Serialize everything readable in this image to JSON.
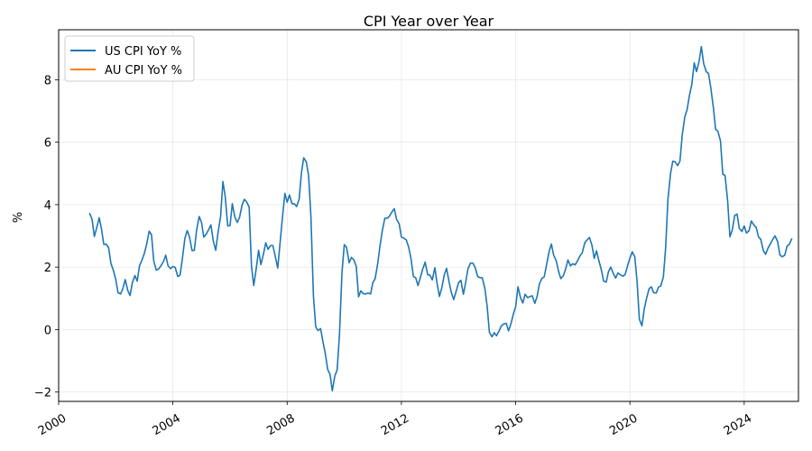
{
  "chart_data": {
    "type": "line",
    "title": "CPI Year over Year",
    "xlabel": "",
    "ylabel": "%",
    "xlim": [
      2000.0,
      2025.9
    ],
    "ylim": [
      -2.3,
      9.6
    ],
    "x_ticks": [
      2000,
      2004,
      2008,
      2012,
      2016,
      2020,
      2024
    ],
    "y_ticks": [
      -2,
      0,
      2,
      4,
      6,
      8
    ],
    "grid": true,
    "legend_position": "top-left",
    "series": [
      {
        "name": "US CPI YoY %",
        "color": "#1f77b4",
        "points": [
          [
            2001.08,
            3.73
          ],
          [
            2001.17,
            3.53
          ],
          [
            2001.25,
            2.98
          ],
          [
            2001.33,
            3.25
          ],
          [
            2001.42,
            3.58
          ],
          [
            2001.5,
            3.22
          ],
          [
            2001.58,
            2.73
          ],
          [
            2001.67,
            2.73
          ],
          [
            2001.75,
            2.62
          ],
          [
            2001.83,
            2.12
          ],
          [
            2001.92,
            1.88
          ],
          [
            2002.0,
            1.6
          ],
          [
            2002.08,
            1.18
          ],
          [
            2002.17,
            1.14
          ],
          [
            2002.25,
            1.32
          ],
          [
            2002.33,
            1.6
          ],
          [
            2002.42,
            1.25
          ],
          [
            2002.5,
            1.09
          ],
          [
            2002.58,
            1.5
          ],
          [
            2002.67,
            1.73
          ],
          [
            2002.75,
            1.55
          ],
          [
            2002.83,
            2.04
          ],
          [
            2002.92,
            2.23
          ],
          [
            2003.0,
            2.44
          ],
          [
            2003.08,
            2.73
          ],
          [
            2003.17,
            3.15
          ],
          [
            2003.25,
            3.04
          ],
          [
            2003.33,
            2.2
          ],
          [
            2003.42,
            1.9
          ],
          [
            2003.5,
            1.94
          ],
          [
            2003.58,
            2.04
          ],
          [
            2003.67,
            2.18
          ],
          [
            2003.75,
            2.38
          ],
          [
            2003.83,
            2.04
          ],
          [
            2003.92,
            1.95
          ],
          [
            2004.0,
            2.02
          ],
          [
            2004.08,
            1.99
          ],
          [
            2004.17,
            1.7
          ],
          [
            2004.25,
            1.74
          ],
          [
            2004.33,
            2.26
          ],
          [
            2004.42,
            2.92
          ],
          [
            2004.5,
            3.17
          ],
          [
            2004.58,
            2.97
          ],
          [
            2004.67,
            2.53
          ],
          [
            2004.75,
            2.54
          ],
          [
            2004.83,
            3.19
          ],
          [
            2004.92,
            3.62
          ],
          [
            2005.0,
            3.44
          ],
          [
            2005.08,
            2.96
          ],
          [
            2005.17,
            3.06
          ],
          [
            2005.25,
            3.2
          ],
          [
            2005.33,
            3.35
          ],
          [
            2005.42,
            2.81
          ],
          [
            2005.5,
            2.54
          ],
          [
            2005.58,
            3.1
          ],
          [
            2005.67,
            3.62
          ],
          [
            2005.75,
            4.74
          ],
          [
            2005.83,
            4.27
          ],
          [
            2005.92,
            3.32
          ],
          [
            2006.0,
            3.33
          ],
          [
            2006.08,
            4.03
          ],
          [
            2006.17,
            3.6
          ],
          [
            2006.25,
            3.43
          ],
          [
            2006.33,
            3.58
          ],
          [
            2006.42,
            3.98
          ],
          [
            2006.5,
            4.17
          ],
          [
            2006.58,
            4.09
          ],
          [
            2006.67,
            3.92
          ],
          [
            2006.75,
            2.04
          ],
          [
            2006.83,
            1.41
          ],
          [
            2006.92,
            1.97
          ],
          [
            2007.0,
            2.54
          ],
          [
            2007.08,
            2.08
          ],
          [
            2007.17,
            2.42
          ],
          [
            2007.25,
            2.78
          ],
          [
            2007.33,
            2.57
          ],
          [
            2007.42,
            2.69
          ],
          [
            2007.5,
            2.69
          ],
          [
            2007.58,
            2.36
          ],
          [
            2007.67,
            1.97
          ],
          [
            2007.75,
            2.76
          ],
          [
            2007.83,
            3.54
          ],
          [
            2007.92,
            4.36
          ],
          [
            2008.0,
            4.08
          ],
          [
            2008.08,
            4.31
          ],
          [
            2008.17,
            4.03
          ],
          [
            2008.25,
            4.03
          ],
          [
            2008.33,
            3.94
          ],
          [
            2008.42,
            4.18
          ],
          [
            2008.5,
            5.02
          ],
          [
            2008.58,
            5.5
          ],
          [
            2008.67,
            5.37
          ],
          [
            2008.75,
            4.94
          ],
          [
            2008.83,
            3.66
          ],
          [
            2008.92,
            1.07
          ],
          [
            2009.0,
            0.09
          ],
          [
            2009.08,
            -0.03
          ],
          [
            2009.17,
            0.03
          ],
          [
            2009.25,
            -0.38
          ],
          [
            2009.33,
            -0.74
          ],
          [
            2009.42,
            -1.28
          ],
          [
            2009.5,
            -1.43
          ],
          [
            2009.58,
            -1.96
          ],
          [
            2009.67,
            -1.48
          ],
          [
            2009.75,
            -1.29
          ],
          [
            2009.83,
            -0.18
          ],
          [
            2009.92,
            1.84
          ],
          [
            2010.0,
            2.72
          ],
          [
            2010.08,
            2.63
          ],
          [
            2010.17,
            2.14
          ],
          [
            2010.25,
            2.31
          ],
          [
            2010.33,
            2.24
          ],
          [
            2010.42,
            2.02
          ],
          [
            2010.5,
            1.05
          ],
          [
            2010.58,
            1.24
          ],
          [
            2010.67,
            1.15
          ],
          [
            2010.75,
            1.14
          ],
          [
            2010.83,
            1.17
          ],
          [
            2010.92,
            1.14
          ],
          [
            2011.0,
            1.5
          ],
          [
            2011.08,
            1.63
          ],
          [
            2011.17,
            2.11
          ],
          [
            2011.25,
            2.68
          ],
          [
            2011.33,
            3.16
          ],
          [
            2011.42,
            3.57
          ],
          [
            2011.5,
            3.56
          ],
          [
            2011.58,
            3.63
          ],
          [
            2011.67,
            3.77
          ],
          [
            2011.75,
            3.87
          ],
          [
            2011.83,
            3.53
          ],
          [
            2011.92,
            3.39
          ],
          [
            2012.0,
            2.96
          ],
          [
            2012.08,
            2.93
          ],
          [
            2012.17,
            2.87
          ],
          [
            2012.25,
            2.65
          ],
          [
            2012.33,
            2.3
          ],
          [
            2012.42,
            1.7
          ],
          [
            2012.5,
            1.66
          ],
          [
            2012.58,
            1.41
          ],
          [
            2012.67,
            1.69
          ],
          [
            2012.75,
            1.95
          ],
          [
            2012.83,
            2.16
          ],
          [
            2012.92,
            1.76
          ],
          [
            2013.0,
            1.74
          ],
          [
            2013.08,
            1.59
          ],
          [
            2013.17,
            1.98
          ],
          [
            2013.25,
            1.47
          ],
          [
            2013.33,
            1.06
          ],
          [
            2013.42,
            1.36
          ],
          [
            2013.5,
            1.75
          ],
          [
            2013.58,
            1.96
          ],
          [
            2013.67,
            1.52
          ],
          [
            2013.75,
            1.18
          ],
          [
            2013.83,
            0.96
          ],
          [
            2013.92,
            1.24
          ],
          [
            2014.0,
            1.5
          ],
          [
            2014.08,
            1.58
          ],
          [
            2014.17,
            1.13
          ],
          [
            2014.25,
            1.51
          ],
          [
            2014.33,
            1.95
          ],
          [
            2014.42,
            2.13
          ],
          [
            2014.5,
            2.13
          ],
          [
            2014.58,
            1.99
          ],
          [
            2014.67,
            1.7
          ],
          [
            2014.75,
            1.66
          ],
          [
            2014.83,
            1.66
          ],
          [
            2014.92,
            1.32
          ],
          [
            2015.0,
            0.76
          ],
          [
            2015.08,
            -0.09
          ],
          [
            2015.17,
            -0.23
          ],
          [
            2015.25,
            -0.1
          ],
          [
            2015.33,
            -0.2
          ],
          [
            2015.42,
            -0.04
          ],
          [
            2015.5,
            0.12
          ],
          [
            2015.58,
            0.18
          ],
          [
            2015.67,
            0.2
          ],
          [
            2015.75,
            -0.04
          ],
          [
            2015.83,
            0.17
          ],
          [
            2015.92,
            0.5
          ],
          [
            2016.0,
            0.73
          ],
          [
            2016.08,
            1.37
          ],
          [
            2016.17,
            1.02
          ],
          [
            2016.25,
            0.85
          ],
          [
            2016.33,
            1.13
          ],
          [
            2016.42,
            1.02
          ],
          [
            2016.5,
            1.06
          ],
          [
            2016.58,
            1.08
          ],
          [
            2016.67,
            0.84
          ],
          [
            2016.75,
            1.06
          ],
          [
            2016.83,
            1.46
          ],
          [
            2016.92,
            1.64
          ],
          [
            2017.0,
            1.69
          ],
          [
            2017.08,
            2.07
          ],
          [
            2017.17,
            2.5
          ],
          [
            2017.25,
            2.74
          ],
          [
            2017.33,
            2.38
          ],
          [
            2017.42,
            2.2
          ],
          [
            2017.5,
            1.87
          ],
          [
            2017.58,
            1.63
          ],
          [
            2017.67,
            1.73
          ],
          [
            2017.75,
            1.94
          ],
          [
            2017.83,
            2.23
          ],
          [
            2017.92,
            2.04
          ],
          [
            2018.0,
            2.11
          ],
          [
            2018.08,
            2.07
          ],
          [
            2018.17,
            2.21
          ],
          [
            2018.25,
            2.36
          ],
          [
            2018.33,
            2.46
          ],
          [
            2018.42,
            2.78
          ],
          [
            2018.5,
            2.87
          ],
          [
            2018.58,
            2.95
          ],
          [
            2018.67,
            2.7
          ],
          [
            2018.75,
            2.28
          ],
          [
            2018.83,
            2.52
          ],
          [
            2018.92,
            2.18
          ],
          [
            2019.0,
            1.91
          ],
          [
            2019.08,
            1.55
          ],
          [
            2019.17,
            1.52
          ],
          [
            2019.25,
            1.86
          ],
          [
            2019.33,
            2.0
          ],
          [
            2019.42,
            1.79
          ],
          [
            2019.5,
            1.65
          ],
          [
            2019.58,
            1.81
          ],
          [
            2019.67,
            1.75
          ],
          [
            2019.75,
            1.71
          ],
          [
            2019.83,
            1.76
          ],
          [
            2019.92,
            2.05
          ],
          [
            2020.0,
            2.29
          ],
          [
            2020.08,
            2.49
          ],
          [
            2020.17,
            2.33
          ],
          [
            2020.25,
            1.54
          ],
          [
            2020.33,
            0.33
          ],
          [
            2020.42,
            0.12
          ],
          [
            2020.5,
            0.65
          ],
          [
            2020.58,
            0.99
          ],
          [
            2020.67,
            1.31
          ],
          [
            2020.75,
            1.37
          ],
          [
            2020.83,
            1.18
          ],
          [
            2020.92,
            1.17
          ],
          [
            2021.0,
            1.36
          ],
          [
            2021.08,
            1.4
          ],
          [
            2021.17,
            1.68
          ],
          [
            2021.25,
            2.62
          ],
          [
            2021.33,
            4.16
          ],
          [
            2021.42,
            4.99
          ],
          [
            2021.5,
            5.39
          ],
          [
            2021.58,
            5.37
          ],
          [
            2021.67,
            5.25
          ],
          [
            2021.75,
            5.39
          ],
          [
            2021.83,
            6.22
          ],
          [
            2021.92,
            6.81
          ],
          [
            2022.0,
            7.04
          ],
          [
            2022.08,
            7.48
          ],
          [
            2022.17,
            7.87
          ],
          [
            2022.25,
            8.54
          ],
          [
            2022.33,
            8.26
          ],
          [
            2022.42,
            8.58
          ],
          [
            2022.5,
            9.06
          ],
          [
            2022.58,
            8.52
          ],
          [
            2022.67,
            8.26
          ],
          [
            2022.75,
            8.2
          ],
          [
            2022.83,
            7.75
          ],
          [
            2022.92,
            7.11
          ],
          [
            2023.0,
            6.41
          ],
          [
            2023.08,
            6.35
          ],
          [
            2023.17,
            6.04
          ],
          [
            2023.25,
            4.98
          ],
          [
            2023.33,
            4.93
          ],
          [
            2023.42,
            4.13
          ],
          [
            2023.5,
            2.97
          ],
          [
            2023.58,
            3.18
          ],
          [
            2023.67,
            3.66
          ],
          [
            2023.75,
            3.7
          ],
          [
            2023.83,
            3.24
          ],
          [
            2023.92,
            3.14
          ],
          [
            2024.0,
            3.32
          ],
          [
            2024.08,
            3.09
          ],
          [
            2024.17,
            3.17
          ],
          [
            2024.25,
            3.48
          ],
          [
            2024.33,
            3.36
          ],
          [
            2024.42,
            3.27
          ],
          [
            2024.5,
            2.97
          ],
          [
            2024.58,
            2.89
          ],
          [
            2024.67,
            2.53
          ],
          [
            2024.75,
            2.41
          ],
          [
            2024.83,
            2.6
          ],
          [
            2024.92,
            2.75
          ],
          [
            2025.0,
            2.89
          ],
          [
            2025.08,
            3.0
          ],
          [
            2025.17,
            2.82
          ],
          [
            2025.25,
            2.39
          ],
          [
            2025.33,
            2.33
          ],
          [
            2025.42,
            2.38
          ],
          [
            2025.5,
            2.67
          ],
          [
            2025.58,
            2.73
          ],
          [
            2025.67,
            2.92
          ]
        ]
      },
      {
        "name": "AU CPI YoY %",
        "color": "#ff7f0e",
        "points": []
      }
    ]
  }
}
